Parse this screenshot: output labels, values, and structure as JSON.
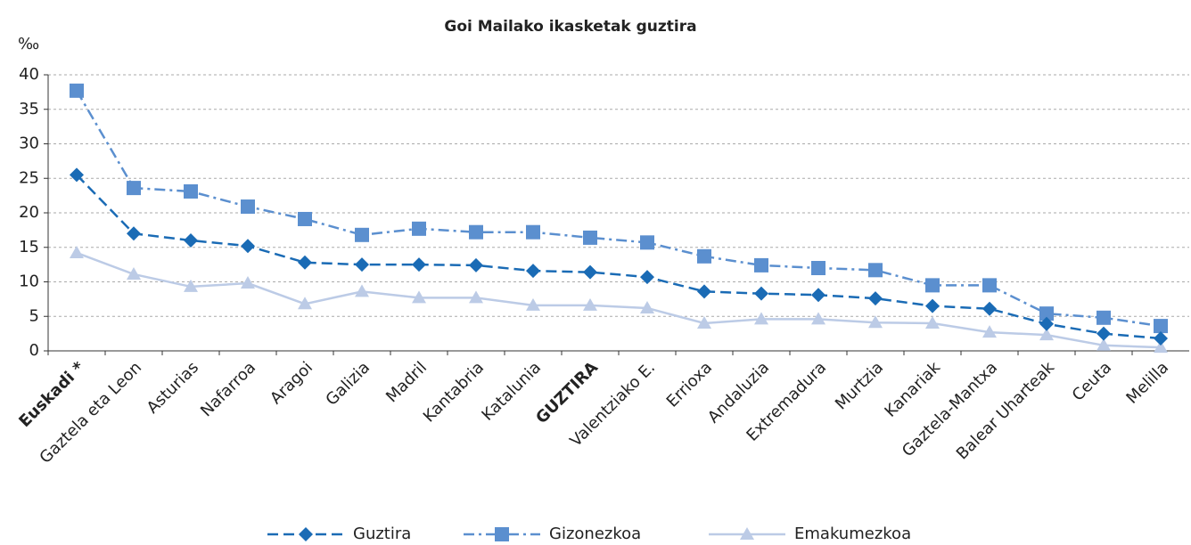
{
  "chart_data": {
    "type": "line",
    "title": "Goi Mailako ikasketak guztira",
    "y_label": "‰",
    "categories": [
      "Euskadi *",
      "Gaztela eta Leon",
      "Asturias",
      "Nafarroa",
      "Aragoi",
      "Galizia",
      "Madril",
      "Kantabria",
      "Katalunia",
      "GUZTIRA",
      "Valentziako E.",
      "Errioxa",
      "Andaluzia",
      "Extremadura",
      "Murtzia",
      "Kanariak",
      "Gaztela-Mantxa",
      "Balear Uharteak",
      "Ceuta",
      "Melilla"
    ],
    "highlighted_categories": [
      0,
      9
    ],
    "series": [
      {
        "name": "Guztira",
        "color": "#1a6bb5",
        "line_style": "dashed",
        "marker": "diamond",
        "values": [
          25.5,
          17,
          16,
          15.2,
          12.8,
          12.5,
          12.5,
          12.4,
          11.6,
          11.4,
          10.7,
          8.6,
          8.3,
          8.1,
          7.6,
          6.5,
          6.1,
          3.9,
          2.5,
          1.8
        ]
      },
      {
        "name": "Gizonezkoa",
        "color": "#5b8fcf",
        "line_style": "dashdot",
        "marker": "square",
        "values": [
          37.7,
          23.6,
          23.1,
          20.9,
          19.1,
          16.8,
          17.7,
          17.2,
          17.2,
          16.4,
          15.7,
          13.7,
          12.4,
          12,
          11.7,
          9.5,
          9.5,
          5.4,
          4.8,
          3.6
        ]
      },
      {
        "name": "Emakumezkoa",
        "color": "#bccbe6",
        "line_style": "solid",
        "marker": "triangle",
        "values": [
          14.2,
          11.1,
          9.3,
          9.8,
          6.8,
          8.6,
          7.7,
          7.7,
          6.6,
          6.6,
          6.2,
          4,
          4.6,
          4.6,
          4.1,
          4,
          2.7,
          2.3,
          0.8,
          0.5
        ]
      }
    ],
    "ylim": [
      0,
      40
    ],
    "yticks": [
      0,
      5,
      10,
      15,
      20,
      25,
      30,
      35,
      40
    ],
    "grid": true,
    "legend": "bottom"
  }
}
